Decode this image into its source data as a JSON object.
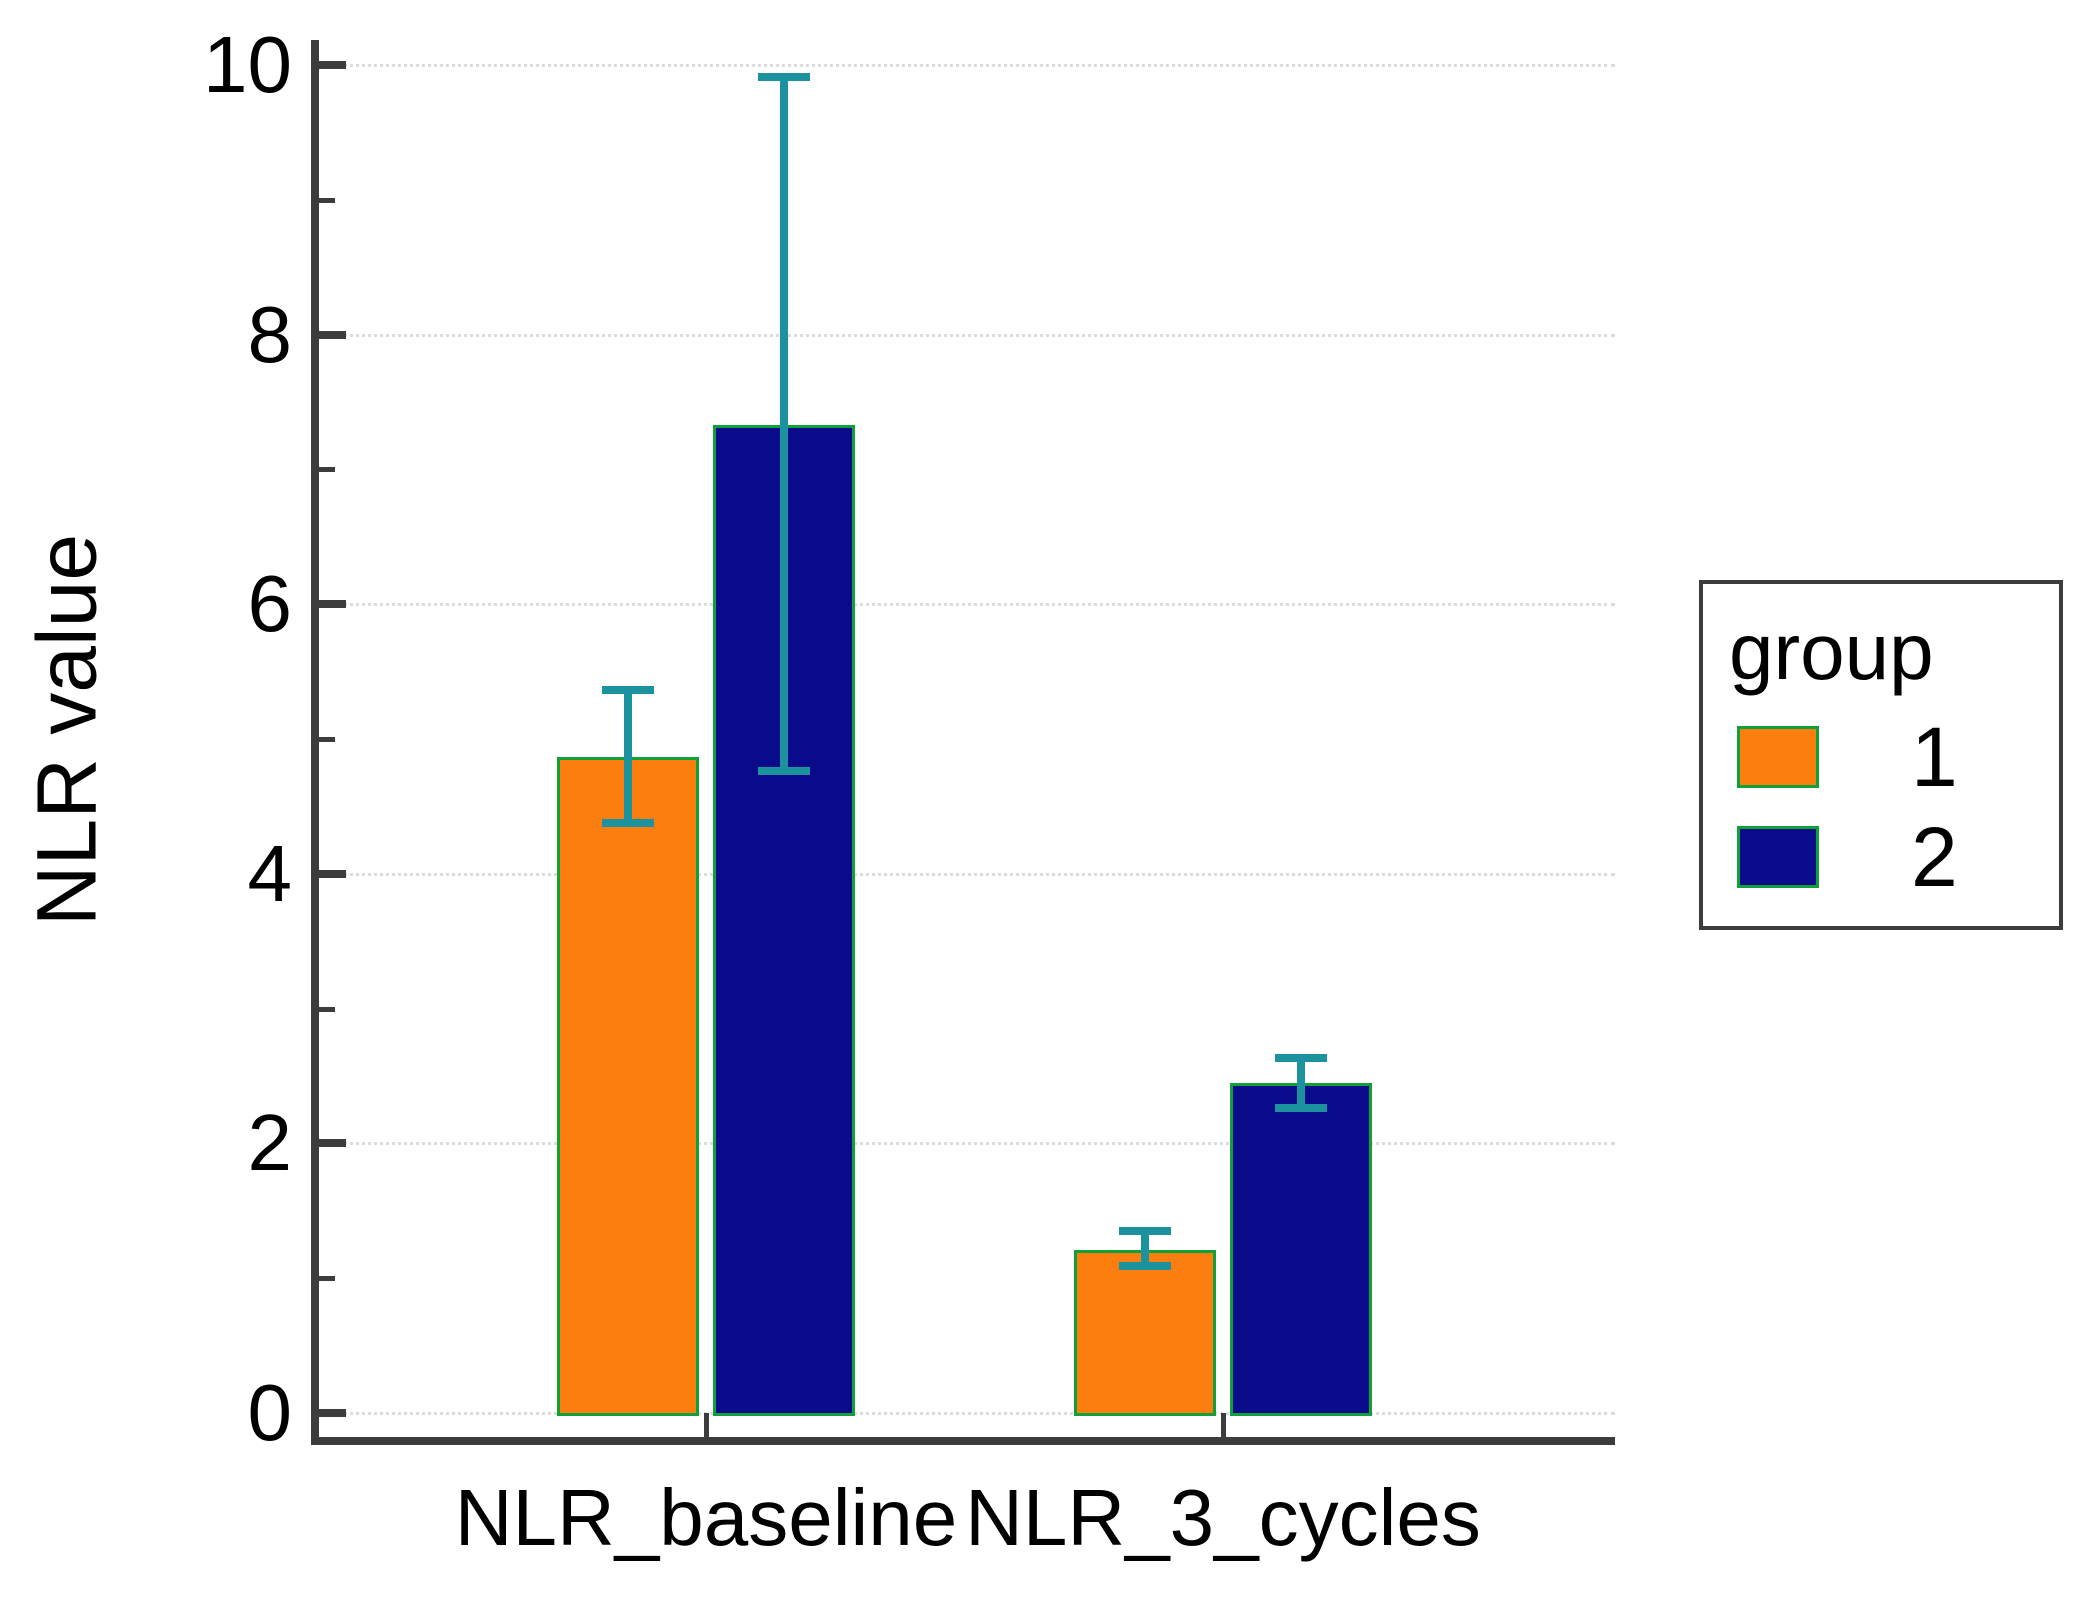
{
  "figure": {
    "background": "#ffffff"
  },
  "y_axis": {
    "title": "NLR value",
    "ticks": [
      0,
      2,
      4,
      6,
      8,
      10
    ],
    "minor_ticks": [
      1,
      3,
      5,
      7,
      9
    ],
    "range": [
      0,
      10
    ]
  },
  "x_axis": {
    "categories": [
      "NLR_baseline",
      "NLR_3_cycles"
    ]
  },
  "legend": {
    "title": "group",
    "entries": [
      {
        "label": "1",
        "color": "#fb7e0e"
      },
      {
        "label": "2",
        "color": "#0a0b8a"
      }
    ]
  },
  "colors": {
    "bar_border": "#0fa039",
    "error_bar": "#1b929d",
    "axis": "#3c3c3c",
    "gridline": "#dcdcdc",
    "text": "#000000"
  },
  "chart_data": {
    "type": "bar",
    "title": "",
    "categories": [
      "NLR_baseline",
      "NLR_3_cycles"
    ],
    "series": [
      {
        "name": "1",
        "color": "#fb7e0e",
        "values": [
          4.87,
          1.21
        ],
        "error_low": [
          4.38,
          1.09
        ],
        "error_high": [
          5.36,
          1.35
        ]
      },
      {
        "name": "2",
        "color": "#0a0b8a",
        "values": [
          7.33,
          2.45
        ],
        "error_low": [
          4.76,
          2.26
        ],
        "error_high": [
          9.91,
          2.63
        ]
      }
    ],
    "xlabel": "",
    "ylabel": "NLR value",
    "ylim": [
      0,
      10
    ],
    "grid": "horizontal-dotted-major",
    "legend_position": "right",
    "legend_title": "group",
    "error_bars": "asymmetric-absolute-bounds"
  }
}
